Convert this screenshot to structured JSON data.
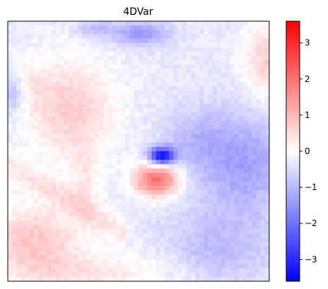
{
  "chart_data": {
    "type": "heatmap",
    "title": "4DVar",
    "xlabel": "",
    "ylabel": "",
    "colormap": "bwr",
    "colors": {
      "low": "#0000ff",
      "mid": "#ffffff",
      "high": "#ff0000"
    },
    "vmin": -3.6,
    "vmax": 3.6,
    "colorbar": {
      "ticks": [
        -3,
        -2,
        -1,
        0,
        1,
        2,
        3
      ],
      "tick_labels": [
        "−3",
        "−2",
        "−1",
        "0",
        "1",
        "2",
        "3"
      ]
    },
    "axes_ticks_visible": false,
    "grid_size": [
      60,
      60
    ],
    "features": [
      {
        "region": "dark-blue spot, centre-left",
        "x": 0.59,
        "y": 0.52,
        "value": -3.5
      },
      {
        "region": "red blob, centre",
        "x": 0.57,
        "y": 0.61,
        "value": 2.1
      },
      {
        "region": "pink region, upper-left",
        "x": 0.24,
        "y": 0.36,
        "value": 0.7
      },
      {
        "region": "blue region, right",
        "x": 0.9,
        "y": 0.55,
        "value": -1.3
      },
      {
        "region": "pink strip, bottom-left",
        "x": 0.1,
        "y": 0.85,
        "value": 0.8
      },
      {
        "region": "blue patch, top centre",
        "x": 0.5,
        "y": 0.05,
        "value": -1.5
      }
    ]
  }
}
